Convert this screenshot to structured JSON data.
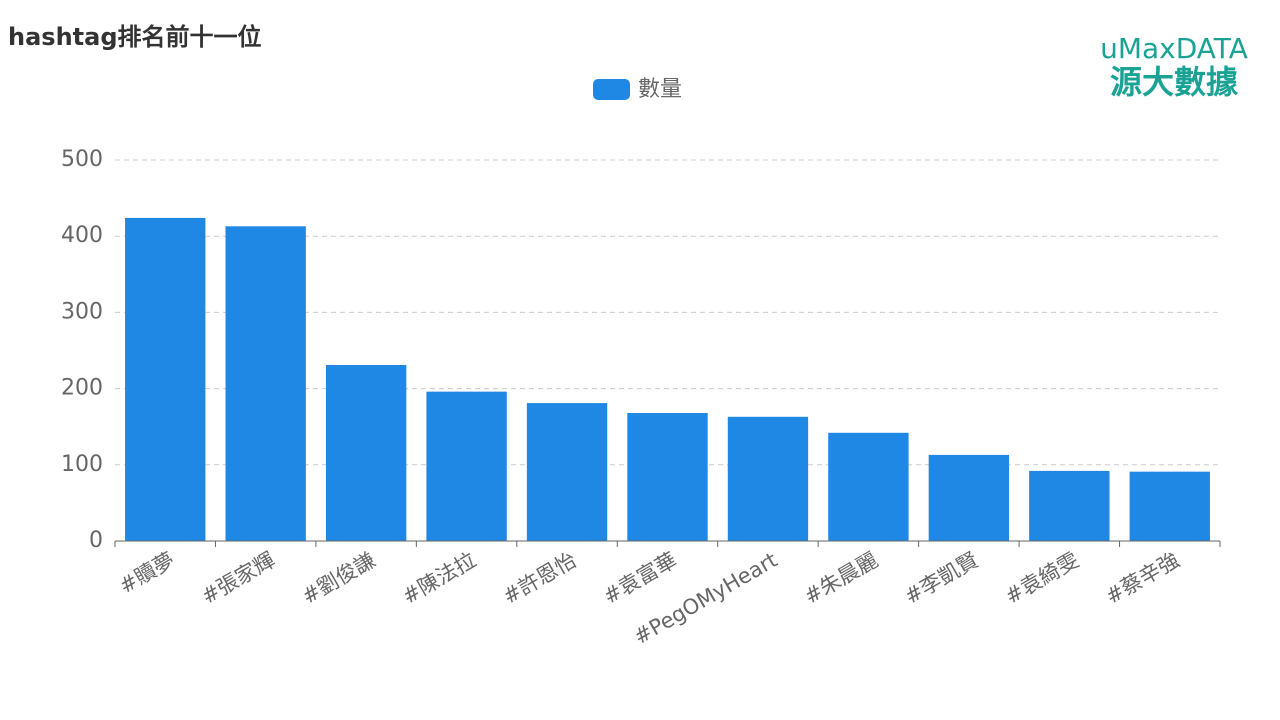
{
  "chart_data": {
    "type": "bar",
    "title": "hashtag排名前十一位",
    "categories": [
      "#贖夢",
      "#張家輝",
      "#劉俊謙",
      "#陳法拉",
      "#許恩怡",
      "#袁富華",
      "#PegOMyHeart",
      "#朱晨麗",
      "#李凱賢",
      "#袁綺雯",
      "#蔡辛強"
    ],
    "series": [
      {
        "name": "數量",
        "color": "#1f88e5",
        "values": [
          424,
          413,
          231,
          196,
          181,
          168,
          163,
          142,
          113,
          92,
          91
        ]
      }
    ],
    "ylim": [
      0,
      500
    ],
    "yticks": [
      0,
      100,
      200,
      300,
      400,
      500
    ],
    "grid": true,
    "legend": "top"
  },
  "logo": {
    "brand": "uMaxDATA",
    "name": "源大數據"
  }
}
